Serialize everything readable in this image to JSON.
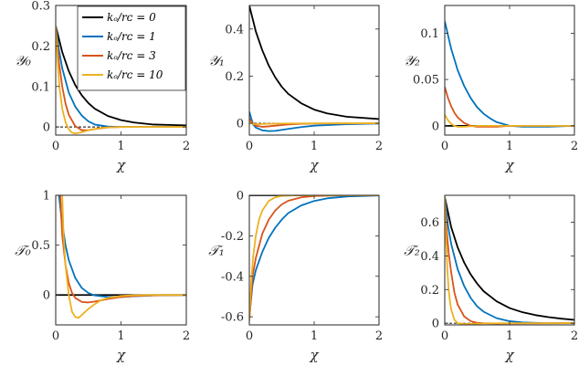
{
  "colors": {
    "k0": "#000000",
    "k1": "#0072BD",
    "k3": "#D95319",
    "k10": "#EDB120"
  },
  "legend": {
    "position": "top-right of first panel",
    "entries": [
      {
        "label": "kₒ/rᴄ = 0",
        "color": "#000000"
      },
      {
        "label": "kₒ/rᴄ = 1",
        "color": "#0072BD"
      },
      {
        "label": "kₒ/rᴄ = 3",
        "color": "#D95319"
      },
      {
        "label": "kₒ/rᴄ = 10",
        "color": "#EDB120"
      }
    ]
  },
  "chart_data": [
    {
      "type": "line",
      "ylabel": "𝒴₀",
      "xlabel": "χ",
      "xlim": [
        0,
        2
      ],
      "ylim": [
        -0.02,
        0.3
      ],
      "xticks": [
        0,
        1,
        2
      ],
      "yticks": [
        0,
        0.1,
        0.2,
        0.3
      ],
      "ytick_labels": [
        "0",
        "0.1",
        "0.2",
        "0.3"
      ],
      "zero_dashed": true,
      "show_legend": true,
      "series": [
        {
          "key": "k0",
          "x": [
            0,
            0.1,
            0.2,
            0.3,
            0.4,
            0.5,
            0.6,
            0.8,
            1.0,
            1.2,
            1.5,
            2.0
          ],
          "y": [
            0.25,
            0.185,
            0.138,
            0.103,
            0.078,
            0.059,
            0.045,
            0.027,
            0.017,
            0.011,
            0.006,
            0.004
          ]
        },
        {
          "key": "k1",
          "x": [
            0,
            0.05,
            0.1,
            0.2,
            0.3,
            0.4,
            0.5,
            0.6,
            0.8,
            1.0,
            2.0
          ],
          "y": [
            0.25,
            0.19,
            0.145,
            0.085,
            0.05,
            0.028,
            0.014,
            0.006,
            0.001,
            0.0,
            0.0
          ]
        },
        {
          "key": "k3",
          "x": [
            0,
            0.05,
            0.1,
            0.15,
            0.2,
            0.3,
            0.4,
            0.5,
            0.6,
            0.8,
            1.0,
            2.0
          ],
          "y": [
            0.25,
            0.16,
            0.1,
            0.058,
            0.03,
            0.002,
            -0.008,
            -0.008,
            -0.005,
            -0.001,
            0.0,
            0.0
          ]
        },
        {
          "key": "k10",
          "x": [
            0,
            0.03,
            0.06,
            0.1,
            0.15,
            0.2,
            0.25,
            0.3,
            0.4,
            0.5,
            0.7,
            1.0,
            2.0
          ],
          "y": [
            0.25,
            0.16,
            0.095,
            0.045,
            0.012,
            -0.006,
            -0.014,
            -0.016,
            -0.013,
            -0.008,
            -0.002,
            0.0,
            0.0
          ]
        }
      ]
    },
    {
      "type": "line",
      "ylabel": "𝒴₁",
      "xlabel": "χ",
      "xlim": [
        0,
        2
      ],
      "ylim": [
        -0.05,
        0.5
      ],
      "xticks": [
        0,
        1,
        2
      ],
      "yticks": [
        0,
        0.2,
        0.4
      ],
      "ytick_labels": [
        "0",
        "0.2",
        "0.4"
      ],
      "zero_dashed": true,
      "series": [
        {
          "key": "k0",
          "x": [
            0,
            0.1,
            0.2,
            0.3,
            0.4,
            0.5,
            0.6,
            0.8,
            1.0,
            1.2,
            1.5,
            2.0
          ],
          "y": [
            0.5,
            0.39,
            0.31,
            0.245,
            0.195,
            0.155,
            0.125,
            0.085,
            0.058,
            0.042,
            0.028,
            0.018
          ]
        },
        {
          "key": "k1",
          "x": [
            0,
            0.03,
            0.06,
            0.1,
            0.2,
            0.3,
            0.4,
            0.6,
            0.8,
            1.0,
            1.5,
            2.0
          ],
          "y": [
            0.05,
            0.02,
            -0.005,
            -0.018,
            -0.03,
            -0.033,
            -0.032,
            -0.024,
            -0.016,
            -0.01,
            -0.004,
            -0.001
          ]
        },
        {
          "key": "k3",
          "x": [
            0,
            0.05,
            0.1,
            0.2,
            0.3,
            0.4,
            0.6,
            0.8,
            1.0,
            2.0
          ],
          "y": [
            0.02,
            0.0,
            -0.01,
            -0.015,
            -0.013,
            -0.01,
            -0.005,
            -0.002,
            -0.001,
            0.0
          ]
        },
        {
          "key": "k10",
          "x": [
            0,
            0.05,
            0.1,
            0.2,
            0.3,
            0.5,
            1.0,
            2.0
          ],
          "y": [
            0.005,
            -0.002,
            -0.004,
            -0.003,
            -0.002,
            -0.001,
            0.0,
            0.0
          ]
        }
      ]
    },
    {
      "type": "line",
      "ylabel": "𝒴₂",
      "xlabel": "χ",
      "xlim": [
        0,
        2
      ],
      "ylim": [
        -0.01,
        0.13
      ],
      "xticks": [
        0,
        1,
        2
      ],
      "yticks": [
        0,
        0.05,
        0.1
      ],
      "ytick_labels": [
        "0",
        "0.05",
        "0.1"
      ],
      "zero_dashed": false,
      "series": [
        {
          "key": "k0",
          "x": [
            0,
            2
          ],
          "y": [
            0.0,
            0.0
          ]
        },
        {
          "key": "k1",
          "x": [
            0,
            0.1,
            0.2,
            0.3,
            0.4,
            0.5,
            0.6,
            0.7,
            0.8,
            1.0,
            1.2,
            1.4,
            1.6,
            2.0
          ],
          "y": [
            0.113,
            0.083,
            0.06,
            0.043,
            0.03,
            0.02,
            0.013,
            0.008,
            0.004,
            0.0,
            -0.001,
            -0.001,
            -0.001,
            0.0
          ]
        },
        {
          "key": "k3",
          "x": [
            0,
            0.05,
            0.1,
            0.15,
            0.2,
            0.3,
            0.4,
            0.5,
            0.6,
            0.8,
            1.0,
            2.0
          ],
          "y": [
            0.042,
            0.03,
            0.021,
            0.014,
            0.009,
            0.003,
            0.0,
            -0.001,
            -0.001,
            -0.001,
            0.0,
            0.0
          ]
        },
        {
          "key": "k10",
          "x": [
            0,
            0.05,
            0.1,
            0.15,
            0.2,
            0.3,
            0.5,
            1.0,
            2.0
          ],
          "y": [
            0.012,
            0.006,
            0.002,
            0.0,
            -0.001,
            -0.001,
            0.0,
            0.0,
            0.0
          ]
        }
      ]
    },
    {
      "type": "line",
      "ylabel": "𝒯₀",
      "xlabel": "χ",
      "xlim": [
        0,
        2
      ],
      "ylim": [
        -0.3,
        1.0
      ],
      "xticks": [
        0,
        1,
        2
      ],
      "yticks": [
        0,
        0.5,
        1
      ],
      "ytick_labels": [
        "0",
        "0.5",
        "1"
      ],
      "zero_dashed": false,
      "series": [
        {
          "key": "k0",
          "x": [
            0,
            2
          ],
          "y": [
            0.0,
            0.0
          ]
        },
        {
          "key": "k1",
          "x": [
            0.05,
            0.08,
            0.1,
            0.15,
            0.2,
            0.3,
            0.4,
            0.5,
            0.6,
            0.8,
            1.0,
            1.2,
            1.5,
            2.0
          ],
          "y": [
            1.0,
            0.82,
            0.72,
            0.5,
            0.35,
            0.17,
            0.07,
            0.02,
            -0.005,
            -0.02,
            -0.02,
            -0.012,
            -0.005,
            0.0
          ]
        },
        {
          "key": "k3",
          "x": [
            0.07,
            0.1,
            0.15,
            0.2,
            0.25,
            0.3,
            0.4,
            0.5,
            0.6,
            0.8,
            1.0,
            1.2,
            1.5,
            2.0
          ],
          "y": [
            1.0,
            0.6,
            0.3,
            0.12,
            0.02,
            -0.03,
            -0.07,
            -0.075,
            -0.065,
            -0.04,
            -0.02,
            -0.01,
            -0.003,
            0.0
          ]
        },
        {
          "key": "k10",
          "x": [
            0.1,
            0.12,
            0.15,
            0.2,
            0.25,
            0.3,
            0.35,
            0.4,
            0.5,
            0.6,
            0.7,
            0.8,
            1.0,
            1.2,
            1.5,
            2.0
          ],
          "y": [
            1.0,
            0.6,
            0.3,
            0.0,
            -0.17,
            -0.22,
            -0.23,
            -0.2,
            -0.14,
            -0.09,
            -0.05,
            -0.03,
            -0.01,
            -0.003,
            0.0,
            0.0
          ]
        }
      ]
    },
    {
      "type": "line",
      "ylabel": "𝒯₁",
      "xlabel": "χ",
      "xlim": [
        0,
        2
      ],
      "ylim": [
        -0.64,
        0.0
      ],
      "xticks": [
        0,
        1,
        2
      ],
      "yticks": [
        -0.6,
        -0.4,
        -0.2,
        0
      ],
      "ytick_labels": [
        "-0.6",
        "-0.4",
        "-0.2",
        "0"
      ],
      "zero_dashed": false,
      "series": [
        {
          "key": "k0",
          "x": [
            0,
            2
          ],
          "y": [
            0.0,
            0.0
          ]
        },
        {
          "key": "k1",
          "x": [
            0,
            0.05,
            0.1,
            0.2,
            0.3,
            0.4,
            0.5,
            0.6,
            0.8,
            1.0,
            1.2,
            1.5,
            2.0
          ],
          "y": [
            -0.6,
            -0.44,
            -0.37,
            -0.28,
            -0.21,
            -0.16,
            -0.12,
            -0.088,
            -0.05,
            -0.028,
            -0.015,
            -0.006,
            -0.001
          ]
        },
        {
          "key": "k3",
          "x": [
            0,
            0.05,
            0.1,
            0.2,
            0.3,
            0.4,
            0.5,
            0.6,
            0.8,
            1.0,
            1.5,
            2.0
          ],
          "y": [
            -0.62,
            -0.4,
            -0.31,
            -0.19,
            -0.12,
            -0.075,
            -0.045,
            -0.027,
            -0.01,
            -0.003,
            0.0,
            0.0
          ]
        },
        {
          "key": "k10",
          "x": [
            0,
            0.03,
            0.06,
            0.1,
            0.15,
            0.2,
            0.3,
            0.4,
            0.5,
            0.7,
            1.0,
            2.0
          ],
          "y": [
            -0.62,
            -0.42,
            -0.3,
            -0.2,
            -0.12,
            -0.075,
            -0.028,
            -0.01,
            -0.003,
            0.0,
            0.0,
            0.0
          ]
        }
      ]
    },
    {
      "type": "line",
      "ylabel": "𝒯₂",
      "xlabel": "χ",
      "xlim": [
        0,
        2
      ],
      "ylim": [
        -0.01,
        0.76
      ],
      "xticks": [
        0,
        1,
        2
      ],
      "yticks": [
        0,
        0.2,
        0.4,
        0.6
      ],
      "ytick_labels": [
        "0",
        "0.2",
        "0.4",
        "0.6"
      ],
      "zero_dashed": true,
      "series": [
        {
          "key": "k0",
          "x": [
            0,
            0.1,
            0.2,
            0.3,
            0.4,
            0.5,
            0.6,
            0.8,
            1.0,
            1.2,
            1.4,
            1.6,
            1.8,
            2.0
          ],
          "y": [
            0.75,
            0.57,
            0.45,
            0.36,
            0.29,
            0.235,
            0.19,
            0.13,
            0.09,
            0.065,
            0.048,
            0.036,
            0.027,
            0.02
          ]
        },
        {
          "key": "k1",
          "x": [
            0,
            0.05,
            0.1,
            0.2,
            0.3,
            0.4,
            0.5,
            0.6,
            0.8,
            1.0,
            1.2,
            1.5,
            2.0
          ],
          "y": [
            0.75,
            0.58,
            0.47,
            0.32,
            0.22,
            0.15,
            0.1,
            0.068,
            0.03,
            0.012,
            0.005,
            0.001,
            0.0
          ]
        },
        {
          "key": "k3",
          "x": [
            0,
            0.03,
            0.06,
            0.1,
            0.15,
            0.2,
            0.3,
            0.4,
            0.5,
            0.6,
            0.8,
            1.0,
            2.0
          ],
          "y": [
            0.75,
            0.55,
            0.42,
            0.3,
            0.18,
            0.11,
            0.04,
            0.012,
            0.002,
            0.0,
            -0.002,
            -0.001,
            0.0
          ]
        },
        {
          "key": "k10",
          "x": [
            0,
            0.02,
            0.04,
            0.06,
            0.08,
            0.1,
            0.15,
            0.2,
            0.3,
            0.4,
            0.6,
            1.0,
            2.0
          ],
          "y": [
            0.75,
            0.5,
            0.32,
            0.2,
            0.13,
            0.08,
            0.02,
            0.0,
            -0.005,
            -0.004,
            -0.001,
            0.0,
            0.0
          ]
        }
      ]
    }
  ]
}
